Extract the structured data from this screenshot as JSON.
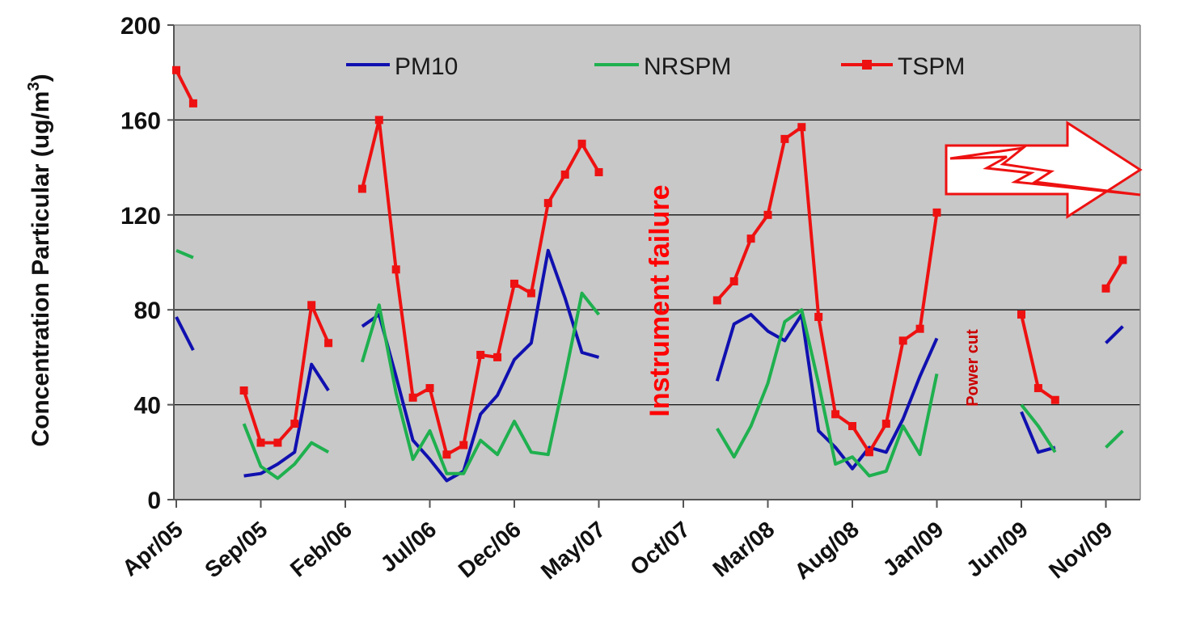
{
  "chart_data": {
    "type": "line",
    "ylabel_main": "Concentration Particular (ug/m",
    "ylabel_sup": "3",
    "ylabel_end": ")",
    "ylim": [
      0,
      200
    ],
    "yticks": [
      0,
      40,
      80,
      120,
      160,
      200
    ],
    "grid": "horizontal",
    "legend": "top",
    "x_axis": {
      "start": "Apr/05",
      "tick_labels": [
        "Apr/05",
        "Sep/05",
        "Feb/06",
        "Jul/06",
        "Dec/06",
        "May/07",
        "Oct/07",
        "Mar/08",
        "Aug/08",
        "Jan/09",
        "Jun/09",
        "Nov/09"
      ]
    },
    "series": [
      {
        "name": "PM10",
        "color": "#1010b0",
        "marker": "none",
        "points": [
          [
            "Apr/05",
            77
          ],
          [
            "May/05",
            63
          ],
          null,
          [
            "Aug/05",
            10
          ],
          [
            "Sep/05",
            11
          ],
          [
            "Oct/05",
            15
          ],
          [
            "Nov/05",
            20
          ],
          [
            "Dec/05",
            57
          ],
          [
            "Jan/06",
            46
          ],
          null,
          [
            "Mar/06",
            73
          ],
          [
            "Apr/06",
            78
          ],
          [
            "May/06",
            52
          ],
          [
            "Jun/06",
            25
          ],
          [
            "Jul/06",
            17
          ],
          [
            "Aug/06",
            8
          ],
          [
            "Sep/06",
            12
          ],
          [
            "Oct/06",
            36
          ],
          [
            "Nov/06",
            44
          ],
          [
            "Dec/06",
            59
          ],
          [
            "Jan/07",
            66
          ],
          [
            "Feb/07",
            105
          ],
          [
            "Mar/07",
            85
          ],
          [
            "Apr/07",
            62
          ],
          [
            "May/07",
            60
          ],
          null,
          [
            "Dec/07",
            50
          ],
          [
            "Jan/08",
            74
          ],
          [
            "Feb/08",
            78
          ],
          [
            "Mar/08",
            71
          ],
          [
            "Apr/08",
            67
          ],
          [
            "May/08",
            78
          ],
          [
            "Jun/08",
            29
          ],
          [
            "Jul/08",
            22
          ],
          [
            "Aug/08",
            13
          ],
          [
            "Sep/08",
            22
          ],
          [
            "Oct/08",
            20
          ],
          [
            "Nov/08",
            34
          ],
          [
            "Dec/08",
            52
          ],
          [
            "Jan/09",
            68
          ],
          null,
          [
            "Jun/09",
            37
          ],
          [
            "Jul/09",
            20
          ],
          [
            "Aug/09",
            22
          ],
          null,
          [
            "Nov/09",
            66
          ],
          [
            "Dec/09",
            73
          ]
        ]
      },
      {
        "name": "NRSPM",
        "color": "#1fb04f",
        "marker": "none",
        "points": [
          [
            "Apr/05",
            105
          ],
          [
            "May/05",
            102
          ],
          null,
          [
            "Aug/05",
            32
          ],
          [
            "Sep/05",
            14
          ],
          [
            "Oct/05",
            9
          ],
          [
            "Nov/05",
            15
          ],
          [
            "Dec/05",
            24
          ],
          [
            "Jan/06",
            20
          ],
          null,
          [
            "Mar/06",
            58
          ],
          [
            "Apr/06",
            82
          ],
          [
            "May/06",
            45
          ],
          [
            "Jun/06",
            17
          ],
          [
            "Jul/06",
            29
          ],
          [
            "Aug/06",
            11
          ],
          [
            "Sep/06",
            11
          ],
          [
            "Oct/06",
            25
          ],
          [
            "Nov/06",
            19
          ],
          [
            "Dec/06",
            33
          ],
          [
            "Jan/07",
            20
          ],
          [
            "Feb/07",
            19
          ],
          [
            "Mar/07",
            52
          ],
          [
            "Apr/07",
            87
          ],
          [
            "May/07",
            78
          ],
          null,
          [
            "Dec/07",
            30
          ],
          [
            "Jan/08",
            18
          ],
          [
            "Feb/08",
            31
          ],
          [
            "Mar/08",
            49
          ],
          [
            "Apr/08",
            75
          ],
          [
            "May/08",
            80
          ],
          [
            "Jun/08",
            49
          ],
          [
            "Jul/08",
            15
          ],
          [
            "Aug/08",
            18
          ],
          [
            "Sep/08",
            10
          ],
          [
            "Oct/08",
            12
          ],
          [
            "Nov/08",
            31
          ],
          [
            "Dec/08",
            19
          ],
          [
            "Jan/09",
            53
          ],
          null,
          [
            "Jun/09",
            40
          ],
          [
            "Jul/09",
            31
          ],
          [
            "Aug/09",
            20
          ],
          null,
          [
            "Nov/09",
            22
          ],
          [
            "Dec/09",
            29
          ]
        ]
      },
      {
        "name": "TSPM",
        "color": "#ee1111",
        "marker": "square",
        "points": [
          [
            "Apr/05",
            181
          ],
          [
            "May/05",
            167
          ],
          null,
          [
            "Aug/05",
            46
          ],
          [
            "Sep/05",
            24
          ],
          [
            "Oct/05",
            24
          ],
          [
            "Nov/05",
            32
          ],
          [
            "Dec/05",
            82
          ],
          [
            "Jan/06",
            66
          ],
          null,
          [
            "Mar/06",
            131
          ],
          [
            "Apr/06",
            160
          ],
          [
            "May/06",
            97
          ],
          [
            "Jun/06",
            43
          ],
          [
            "Jul/06",
            47
          ],
          [
            "Aug/06",
            19
          ],
          [
            "Sep/06",
            23
          ],
          [
            "Oct/06",
            61
          ],
          [
            "Nov/06",
            60
          ],
          [
            "Dec/06",
            91
          ],
          [
            "Jan/07",
            87
          ],
          [
            "Feb/07",
            125
          ],
          [
            "Mar/07",
            137
          ],
          [
            "Apr/07",
            150
          ],
          [
            "May/07",
            138
          ],
          null,
          [
            "Dec/07",
            84
          ],
          [
            "Jan/08",
            92
          ],
          [
            "Feb/08",
            110
          ],
          [
            "Mar/08",
            120
          ],
          [
            "Apr/08",
            152
          ],
          [
            "May/08",
            157
          ],
          [
            "Jun/08",
            77
          ],
          [
            "Jul/08",
            36
          ],
          [
            "Aug/08",
            31
          ],
          [
            "Sep/08",
            20
          ],
          [
            "Oct/08",
            32
          ],
          [
            "Nov/08",
            67
          ],
          [
            "Dec/08",
            72
          ],
          [
            "Jan/09",
            121
          ],
          null,
          [
            "Jun/09",
            78
          ],
          [
            "Jul/09",
            47
          ],
          [
            "Aug/09",
            42
          ],
          null,
          [
            "Nov/09",
            89
          ],
          [
            "Dec/09",
            101
          ]
        ]
      }
    ],
    "annotations": {
      "instrument_failure": "Instrument failure",
      "power_cut": "Power cut",
      "lightning_arrow": "lightning-arrow-icon"
    }
  }
}
